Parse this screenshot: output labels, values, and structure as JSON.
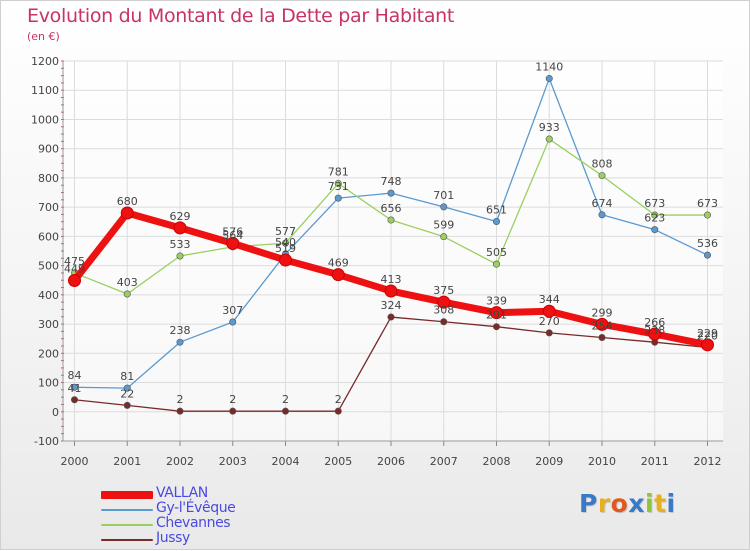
{
  "title": "Evolution du Montant de la Dette par Habitant",
  "subtitle": "(en €)",
  "logo": {
    "text": "Proxiti",
    "letters": [
      {
        "ch": "P",
        "color": "#3a78c8"
      },
      {
        "ch": "r",
        "color": "#e7b020"
      },
      {
        "ch": "o",
        "color": "#e05a20"
      },
      {
        "ch": "x",
        "color": "#3a78c8"
      },
      {
        "ch": "i",
        "color": "#8cc43c"
      },
      {
        "ch": "t",
        "color": "#e7b020"
      },
      {
        "ch": "i",
        "color": "#3a78c8"
      }
    ]
  },
  "chart_data": {
    "type": "line",
    "title": "Evolution du Montant de la Dette par Habitant",
    "subtitle": "(en €)",
    "x": [
      "2000",
      "2001",
      "2002",
      "2003",
      "2004",
      "2005",
      "2006",
      "2007",
      "2008",
      "2009",
      "2010",
      "2011",
      "2012"
    ],
    "yticks": [
      -100,
      0,
      100,
      200,
      300,
      400,
      500,
      600,
      700,
      800,
      900,
      1000,
      1100,
      1200
    ],
    "ylim": [
      -100,
      1200
    ],
    "grid": true,
    "legend_position": "bottom-left",
    "series": [
      {
        "name": "VALLAN",
        "color": "#ee1111",
        "values": [
          449,
          680,
          629,
          576,
          519,
          469,
          413,
          375,
          339,
          344,
          299,
          266,
          229
        ],
        "labels": [
          "449",
          "680",
          "629",
          "576",
          "519",
          "469",
          "413",
          "375",
          "339",
          "344",
          "299",
          "266",
          "229"
        ]
      },
      {
        "name": "Gy-l'Évêque",
        "color": "#5a9ad0",
        "values": [
          84,
          81,
          238,
          307,
          540,
          731,
          748,
          701,
          651,
          1140,
          674,
          623,
          536
        ],
        "labels": [
          "84",
          "81",
          "238",
          "307",
          "540",
          "731",
          "748",
          "701",
          "651",
          "1140",
          "674",
          "623",
          "536"
        ]
      },
      {
        "name": "Chevannes",
        "color": "#99d060",
        "values": [
          475,
          403,
          533,
          564,
          577,
          781,
          656,
          599,
          505,
          933,
          808,
          673,
          673
        ],
        "labels": [
          "475",
          "403",
          "533",
          "564",
          "577",
          "781",
          "656",
          "599",
          "505",
          "933",
          "808",
          "673",
          "673"
        ]
      },
      {
        "name": "Jussy",
        "color": "#7a2a2a",
        "values": [
          41,
          22,
          2,
          2,
          2,
          2,
          324,
          308,
          291,
          270,
          254,
          238,
          220
        ],
        "labels": [
          "41",
          "22",
          "2",
          "2",
          "2",
          "2",
          "324",
          "308",
          "291",
          "270",
          "254",
          "238",
          "220"
        ]
      }
    ]
  }
}
